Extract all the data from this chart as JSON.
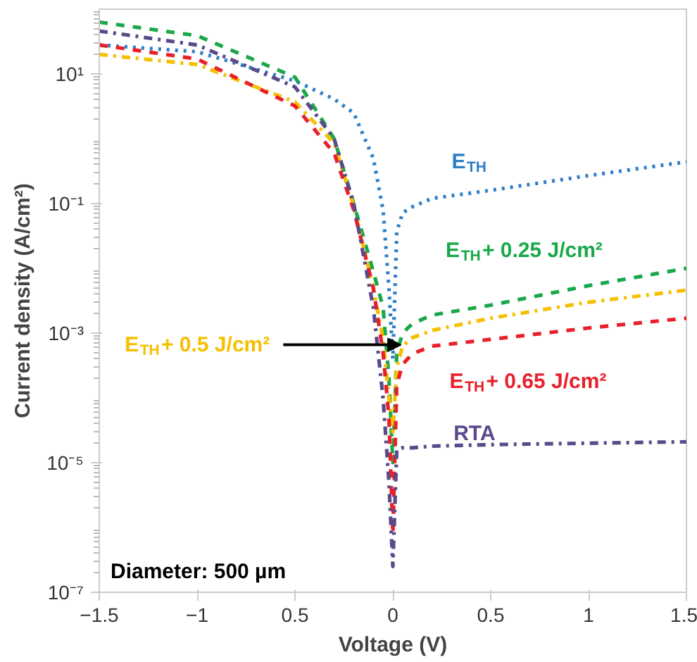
{
  "chart_data": {
    "type": "line",
    "xlabel": "Voltage (V)",
    "ylabel": "Current density (A/cm²)",
    "log": "y",
    "xlim": [
      -1.5,
      1.5
    ],
    "xticks": [
      -1.5,
      -1,
      {
        "value": -0.5,
        "label": "0.5"
      },
      0,
      0.5,
      1,
      1.5
    ],
    "ylim": [
      1e-07,
      100
    ],
    "yticks": [
      {
        "value": 10,
        "label": "10¹"
      },
      {
        "value": 0.1,
        "label": "10⁻¹"
      },
      {
        "value": 0.001,
        "label": "10⁻³"
      },
      {
        "value": 1e-05,
        "label": "10⁻⁵"
      },
      {
        "value": 1e-07,
        "label": "10⁻⁷"
      }
    ],
    "grid": false,
    "x": [
      -1.5,
      -1,
      -0.5,
      -0.3,
      -0.2,
      -0.1,
      -0.05,
      -0.02,
      0,
      0.02,
      0.05,
      0.1,
      0.2,
      0.5,
      1,
      1.5
    ],
    "series": [
      {
        "name": "E$_{TH}$",
        "color": "#2f7fc8",
        "line_style": "dotted",
        "values": [
          28,
          22,
          7.8,
          4.1,
          2.5,
          0.5,
          0.08,
          0.005,
          0.0004,
          0.037,
          0.072,
          0.089,
          0.12,
          0.16,
          0.27,
          0.44
        ]
      },
      {
        "name": "E$_{TH}$+ 0.25 J/cm²",
        "color": "#1aa84a",
        "line_style": "dashed",
        "values": [
          63,
          39,
          8.9,
          1,
          0.1,
          0.009,
          0.0025,
          0.0002,
          1e-05,
          0.0005,
          0.001,
          0.0014,
          0.0019,
          0.0027,
          0.0054,
          0.01
        ]
      },
      {
        "name": "E$_{TH}$+ 0.5 J/cm²",
        "color": "#f5c000",
        "line_style": "dashdot",
        "values": [
          20,
          14,
          3.7,
          0.85,
          0.09,
          0.005,
          0.0008,
          0.0001,
          3e-05,
          0.0003,
          0.00063,
          0.00085,
          0.0011,
          0.0017,
          0.003,
          0.0046
        ]
      },
      {
        "name": "E$_{TH}$+ 0.65 J/cm²",
        "color": "#e8202a",
        "line_style": "dashed",
        "values": [
          28,
          17,
          3.2,
          0.6,
          0.08,
          0.005,
          0.0005,
          5e-05,
          8e-07,
          0.00016,
          0.00033,
          0.00048,
          0.00063,
          0.0008,
          0.0012,
          0.0017
        ]
      },
      {
        "name": "RTA",
        "color": "#5b4a8a",
        "line_style": "dashdot",
        "values": [
          46,
          28,
          6.3,
          1,
          0.1,
          0.0025,
          0.0001,
          5e-06,
          2.5e-07,
          1.6e-05,
          1.7e-05,
          1.7e-05,
          1.8e-05,
          1.9e-05,
          2e-05,
          2.1e-05
        ]
      }
    ],
    "annotations": [
      "Diameter: 500 µm"
    ]
  }
}
